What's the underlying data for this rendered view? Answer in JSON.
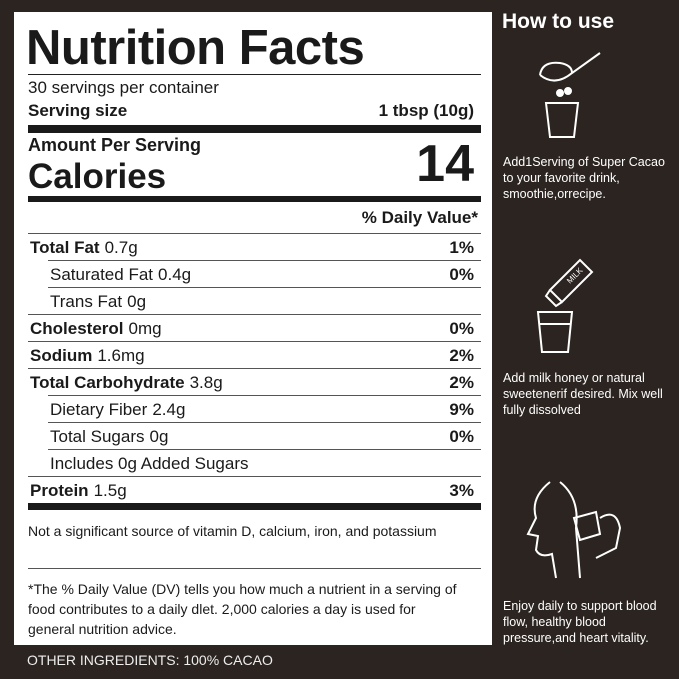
{
  "label": {
    "title": "Nutrition Facts",
    "servings": "30 servings per container",
    "serving_size_label": "Serving size",
    "serving_size_value": "1 tbsp (10g)",
    "amount_per_serving": "Amount Per Serving",
    "calories_label": "Calories",
    "calories_value": "14",
    "daily_value_header": "% Daily Value*",
    "rows": [
      {
        "name": "Total Fat",
        "amount": "0.7g",
        "dv": "1%",
        "bold": true,
        "indent": false
      },
      {
        "name": "Saturated Fat",
        "amount": "0.4g",
        "dv": "0%",
        "bold": false,
        "indent": true
      },
      {
        "name": "Trans Fat",
        "amount": "0g",
        "bold": false,
        "indent": true
      },
      {
        "name": "Cholesterol",
        "amount": "0mg",
        "dv": "0%",
        "bold": true,
        "indent": false
      },
      {
        "name": "Sodium",
        "amount": "1.6mg",
        "dv": "2%",
        "bold": true,
        "indent": false
      },
      {
        "name": "Total Carbohydrate",
        "amount": "3.8g",
        "dv": "2%",
        "bold": true,
        "indent": false
      },
      {
        "name": "Dietary Fiber",
        "amount": "2.4g",
        "dv": "9%",
        "bold": false,
        "indent": true
      },
      {
        "name": "Total Sugars",
        "amount": "0g",
        "dv": "0%",
        "bold": false,
        "indent": true
      },
      {
        "name": "Includes 0g Added Sugars",
        "bold": false,
        "indent": true
      },
      {
        "name": "Protein",
        "amount": "1.5g",
        "dv": "3%",
        "bold": true,
        "indent": false
      }
    ],
    "footnote_vitamins": "Not a significant source of vitamin D, calcium, iron, and potassium",
    "footnote_dv": "*The % Daily Value (DV) tells you how much a nutrient in a serving of food contributes to a daily dlet. 2,000 calories a day is used for general nutrition advice."
  },
  "ingredients": "OTHER INGREDIENTS: 100% CACAO",
  "how_to_use": {
    "title": "How to use",
    "steps": [
      "Add1Serving of Super Cacao to your favorite drink, smoothie,orrecipe.",
      "Add milk honey or natural sweetenerif desired. Mix well fully dissolved",
      "Enjoy daily to support blood flow, healthy blood pressure,and heart vitality."
    ]
  }
}
